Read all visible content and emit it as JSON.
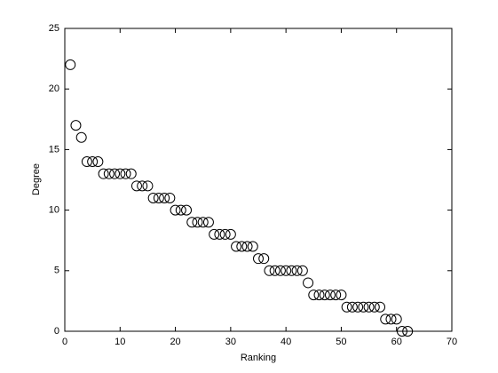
{
  "chart_data": {
    "type": "scatter",
    "xlabel": "Ranking",
    "ylabel": "Degree",
    "x": [
      1,
      2,
      3,
      4,
      5,
      6,
      7,
      8,
      9,
      10,
      11,
      12,
      13,
      14,
      15,
      16,
      17,
      18,
      19,
      20,
      21,
      22,
      23,
      24,
      25,
      26,
      27,
      28,
      29,
      30,
      31,
      32,
      33,
      34,
      35,
      36,
      37,
      38,
      39,
      40,
      41,
      42,
      43,
      44,
      45,
      46,
      47,
      48,
      49,
      50,
      51,
      52,
      53,
      54,
      55,
      56,
      57,
      58,
      59,
      60,
      61,
      62
    ],
    "values": [
      22,
      17,
      16,
      14,
      14,
      14,
      13,
      13,
      13,
      13,
      13,
      13,
      12,
      12,
      12,
      11,
      11,
      11,
      11,
      10,
      10,
      10,
      9,
      9,
      9,
      9,
      8,
      8,
      8,
      8,
      7,
      7,
      7,
      7,
      6,
      6,
      5,
      5,
      5,
      5,
      5,
      5,
      5,
      4,
      3,
      3,
      3,
      3,
      3,
      3,
      2,
      2,
      2,
      2,
      2,
      2,
      2,
      1,
      1,
      1,
      0,
      0
    ],
    "color": "#000000",
    "xlim": [
      0,
      70
    ],
    "xticks": [
      0,
      10,
      20,
      30,
      40,
      50,
      60,
      70
    ],
    "ylim": [
      0,
      25
    ],
    "yticks": [
      0,
      5,
      10,
      15,
      20,
      25
    ]
  }
}
